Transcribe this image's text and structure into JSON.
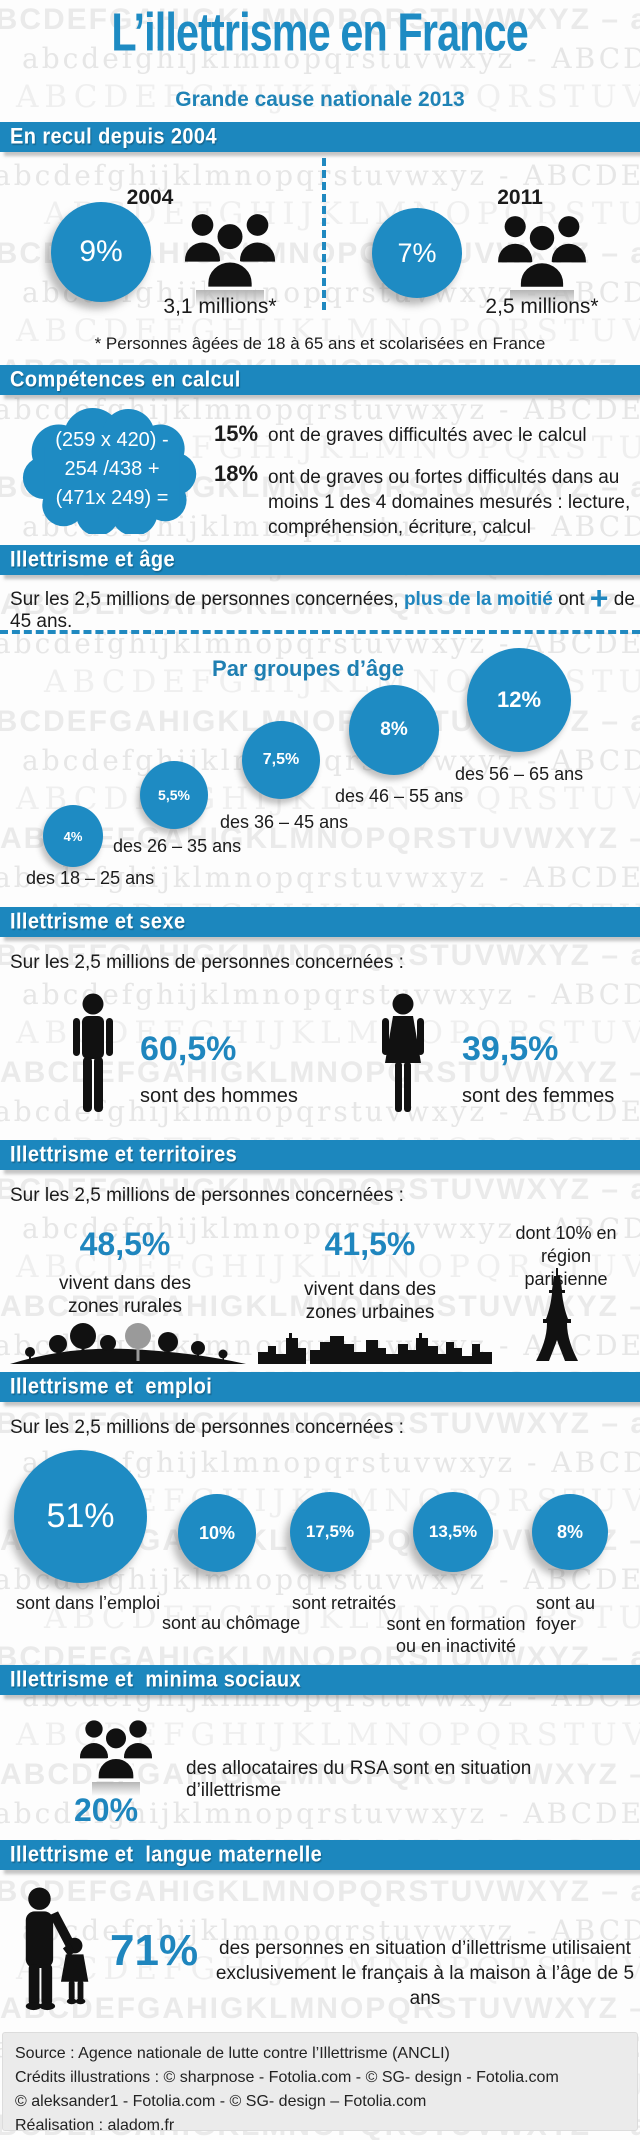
{
  "page": {
    "title": "L’illettrisme en France",
    "subtitle": "Grande cause nationale 2013"
  },
  "colors": {
    "accent": "#1E8BC3",
    "accent_dark": "#156F9C",
    "ink": "#1B1B1B",
    "icon_black": "#111111"
  },
  "watermark": {
    "rows": 55,
    "lines": [
      "ABCDEFGAHIGKLMNOPQRSTUVWXYZ – abcdefghijklm",
      "abcdefghijklmnopqrstuvwxyz - ABCDEFGHIJKLM",
      "ABCDEFGHIJKLMNOPQRSTUVWXYZ - abcdefgh"
    ]
  },
  "decline": {
    "header": "En recul depuis 2004",
    "year_left": "2004",
    "pct_left": "9%",
    "count_left": "3,1 millions*",
    "year_right": "2011",
    "pct_right": "7%",
    "count_right": "2,5 millions*",
    "footnote": "* Personnes âgées de 18 à 65 ans et scolarisées en France"
  },
  "calc": {
    "header": "Compétences en calcul",
    "cloud_lines": [
      "(259 x 420) -",
      "254 /438 +",
      "(471x 249) ="
    ],
    "items": [
      {
        "pct": "15%",
        "text": "ont de graves difficultés avec le calcul"
      },
      {
        "pct": "18%",
        "text": "ont de graves ou fortes difficultés dans au moins 1 des 4 domaines mesurés : lecture, compréhension, écriture, calcul"
      }
    ]
  },
  "age": {
    "header": "Illettrisme et âge",
    "intro_prefix": "Sur les 2,5 millions de personnes concernées, ",
    "intro_highlight": "plus de la moitié",
    "intro_mid": " ont ",
    "intro_plus": "+",
    "intro_suffix": " de 45 ans.",
    "subtitle": "Par groupes d’âge",
    "bubbles": [
      {
        "pct": "4%",
        "label": "des 18 – 25 ans"
      },
      {
        "pct": "5,5%",
        "label": "des 26 – 35 ans"
      },
      {
        "pct": "7,5%",
        "label": "des 36 – 45 ans"
      },
      {
        "pct": "8%",
        "label": "des 46 – 55 ans"
      },
      {
        "pct": "12%",
        "label": "des 56 – 65 ans"
      }
    ]
  },
  "gender": {
    "header": "Illettrisme et sexe",
    "intro": "Sur les 2,5 millions de personnes concernées :",
    "male_pct": "60,5%",
    "male_label": "sont des hommes",
    "female_pct": "39,5%",
    "female_label": "sont des femmes"
  },
  "territory": {
    "header": "Illettrisme et territoires",
    "intro": "Sur les 2,5 millions de personnes concernées :",
    "rural_pct": "48,5%",
    "rural_label": "vivent dans des zones rurales",
    "urban_pct": "41,5%",
    "urban_label": "vivent dans des zones urbaines",
    "paris_note": "dont 10% en région parisienne"
  },
  "employment": {
    "header": "Illettrisme et  emploi",
    "intro": "Sur les 2,5 millions de personnes concernées :",
    "circles": [
      {
        "pct": "51%",
        "label": "sont dans l’emploi"
      },
      {
        "pct": "10%",
        "label": "sont au chômage"
      },
      {
        "pct": "17,5%",
        "label": "sont retraités"
      },
      {
        "pct": "13,5%",
        "label": "sont en formation ou en inactivité"
      },
      {
        "pct": "8%",
        "label": "sont au foyer"
      }
    ]
  },
  "welfare": {
    "header": "Illettrisme et  minima sociaux",
    "pct": "20%",
    "text": "des allocataires du RSA sont en situation d’illettrisme"
  },
  "language": {
    "header": "Illettrisme et  langue maternelle",
    "pct": "71%",
    "text": "des personnes en situation d’illettrisme utilisaient exclusivement le français à la maison à l’âge de 5 ans"
  },
  "footer": {
    "lines": [
      "Source : Agence nationale de lutte contre l’Illettrisme (ANCLI)",
      "Crédits illustrations : © sharpnose - Fotolia.com - © SG- design - Fotolia.com",
      "© aleksander1 - Fotolia.com - © SG- design – Fotolia.com",
      "Réalisation : aladom.fr"
    ]
  },
  "chart_data": [
    {
      "type": "bar",
      "title": "En recul depuis 2004",
      "categories": [
        "2004",
        "2011"
      ],
      "values": [
        9,
        7
      ],
      "unit": "%",
      "annotations": [
        "3,1 millions",
        "2,5 millions"
      ]
    },
    {
      "type": "bar",
      "title": "Compétences en calcul",
      "categories": [
        "graves difficultés avec le calcul",
        "graves ou fortes difficultés dans au moins 1 des 4 domaines mesurés"
      ],
      "values": [
        15,
        18
      ],
      "unit": "%"
    },
    {
      "type": "bar",
      "title": "Par groupes d’âge",
      "categories": [
        "18–25 ans",
        "26–35 ans",
        "36–45 ans",
        "46–55 ans",
        "56–65 ans"
      ],
      "values": [
        4,
        5.5,
        7.5,
        8,
        12
      ],
      "unit": "%"
    },
    {
      "type": "pie",
      "title": "Illettrisme et sexe",
      "categories": [
        "hommes",
        "femmes"
      ],
      "values": [
        60.5,
        39.5
      ],
      "unit": "%"
    },
    {
      "type": "bar",
      "title": "Illettrisme et territoires",
      "categories": [
        "zones rurales",
        "zones urbaines",
        "dont région parisienne"
      ],
      "values": [
        48.5,
        41.5,
        10
      ],
      "unit": "%"
    },
    {
      "type": "bar",
      "title": "Illettrisme et emploi",
      "categories": [
        "dans l’emploi",
        "au chômage",
        "retraités",
        "en formation ou en inactivité",
        "au foyer"
      ],
      "values": [
        51,
        10,
        17.5,
        13.5,
        8
      ],
      "unit": "%"
    },
    {
      "type": "bar",
      "title": "Illettrisme et minima sociaux",
      "categories": [
        "allocataires du RSA en situation d’illettrisme"
      ],
      "values": [
        20
      ],
      "unit": "%"
    },
    {
      "type": "bar",
      "title": "Illettrisme et langue maternelle",
      "categories": [
        "utilisaient exclusivement le français à la maison à 5 ans"
      ],
      "values": [
        71
      ],
      "unit": "%"
    }
  ]
}
